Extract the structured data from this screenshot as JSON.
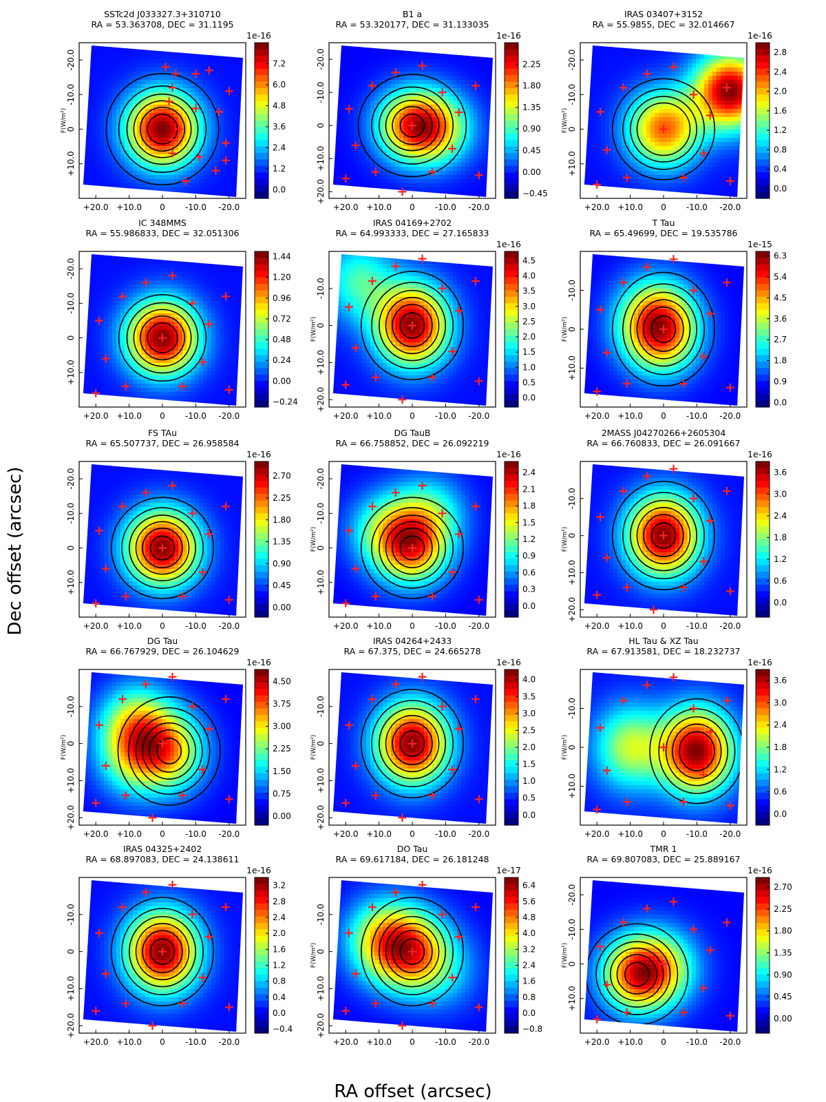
{
  "figure": {
    "xlabel": "RA offset (arcsec)",
    "ylabel": "Dec offset (arcsec)"
  },
  "chart_data": [
    {
      "type": "heatmap",
      "name": "SSTc2d J033327.3+310710",
      "title_line1": "SSTc2d J033327.3+310710",
      "title_line2": "RA = 53.363708, DEC = 31.1195",
      "scale": "1e-16",
      "cb_ticks": [
        "7.2",
        "6.0",
        "4.8",
        "3.6",
        "2.4",
        "1.2",
        "0.0"
      ],
      "cb_range": [
        -0.5,
        8.4
      ],
      "cb_label": "F(W/m²)",
      "xticks": [
        "+20.0",
        "+10.0",
        "0",
        "-10.0",
        "-20.0"
      ],
      "yticks": [
        "-20.0",
        "-10.0",
        "0",
        "+10.0"
      ],
      "peaks": [
        {
          "x": 0,
          "y": 0,
          "w": 1.0
        }
      ],
      "crosses": [
        [
          -1,
          -18
        ],
        [
          -3,
          -12
        ],
        [
          -2,
          -8
        ],
        [
          -5,
          0
        ],
        [
          -3,
          7
        ],
        [
          -7,
          15
        ],
        [
          -9,
          20
        ],
        [
          -16,
          12
        ],
        [
          -19,
          4
        ],
        [
          -20,
          -11
        ],
        [
          -14,
          -17
        ],
        [
          -4,
          -16
        ],
        [
          -10,
          -16
        ],
        [
          -17,
          -5
        ],
        [
          -19,
          9
        ],
        [
          -10,
          -6
        ],
        [
          -11,
          8
        ],
        [
          -3,
          3
        ]
      ],
      "contours": [
        0.1,
        0.25,
        0.4,
        0.55,
        0.7,
        0.85
      ],
      "xlim": [
        25,
        -25
      ],
      "ylim": [
        -25,
        20
      ]
    },
    {
      "type": "heatmap",
      "name": "B1 a",
      "title_line1": "B1 a",
      "title_line2": "RA = 53.320177, DEC = 31.133035",
      "scale": "1e-16",
      "cb_ticks": [
        "2.25",
        "1.80",
        "1.35",
        "0.90",
        "0.45",
        "0.00",
        "−0.45"
      ],
      "cb_range": [
        -0.55,
        2.7
      ],
      "cb_label": "",
      "xticks": [
        "+20.0",
        "+10.0",
        "0",
        "-10.0",
        "-20.0"
      ],
      "yticks": [
        "-20.0",
        "-10.0",
        "0",
        "+10.0",
        "+20.0"
      ],
      "peaks": [
        {
          "x": 0,
          "y": 0,
          "w": 1.0
        },
        {
          "x": -8,
          "y": 1,
          "w": 0.6
        }
      ],
      "crosses": [],
      "contours": [
        0.12,
        0.3,
        0.45,
        0.6,
        0.75,
        0.9
      ],
      "xlim": [
        25,
        -25
      ],
      "ylim": [
        -25,
        22
      ]
    },
    {
      "type": "heatmap",
      "name": "IRAS 03407+3152",
      "title_line1": "IRAS 03407+3152",
      "title_line2": "RA = 55.9855, DEC = 32.014667",
      "scale": "1e-16",
      "cb_ticks": [
        "2.8",
        "2.4",
        "2.0",
        "1.6",
        "1.2",
        "0.8",
        "0.4",
        "0.0"
      ],
      "cb_range": [
        -0.2,
        3.0
      ],
      "cb_label": "F(W/m²)",
      "xticks": [
        "+20.0",
        "+10.0",
        "0",
        "-10.0",
        "-20.0"
      ],
      "yticks": [
        "-20.0",
        "-10.0",
        "0",
        "+10.0"
      ],
      "peaks": [
        {
          "x": 0,
          "y": 0,
          "w": 0.75
        },
        {
          "x": -20,
          "y": -11,
          "w": 1.0
        }
      ],
      "crosses": [],
      "contours": [
        0.15,
        0.3,
        0.45,
        0.6
      ],
      "xlim": [
        25,
        -25
      ],
      "ylim": [
        -25,
        20
      ]
    },
    {
      "type": "heatmap",
      "name": "IC 348MMS",
      "title_line1": "IC 348MMS",
      "title_line2": "RA = 55.986833, DEC = 32.051306",
      "scale": "",
      "cb_ticks": [
        "1.44",
        "1.20",
        "0.96",
        "0.72",
        "0.48",
        "0.24",
        "0.00",
        "−0.24"
      ],
      "cb_range": [
        -0.3,
        1.5
      ],
      "cb_label": "",
      "xticks": [
        "+20.0",
        "+10.0",
        "0",
        "-10.0",
        "-20.0"
      ],
      "yticks": [
        "-20.0",
        "-10.0",
        "0",
        "+10.0"
      ],
      "peaks": [
        {
          "x": 0,
          "y": 0,
          "w": 1.0
        }
      ],
      "crosses": [],
      "contours": [
        0.25,
        0.4,
        0.55,
        0.7,
        0.85
      ],
      "xlim": [
        25,
        -25
      ],
      "ylim": [
        -25,
        20
      ]
    },
    {
      "type": "heatmap",
      "name": "IRAS 04169+2702",
      "title_line1": "IRAS 04169+2702",
      "title_line2": "RA = 64.993333, DEC = 27.165833",
      "scale": "1e-16",
      "cb_ticks": [
        "4.5",
        "4.0",
        "3.5",
        "3.0",
        "2.5",
        "2.0",
        "1.5",
        "1.0",
        "0.5",
        "0.0"
      ],
      "cb_range": [
        -0.3,
        4.8
      ],
      "cb_label": "F(W/m²)",
      "xticks": [
        "+20.0",
        "+10.0",
        "0",
        "-10.0",
        "-20.0"
      ],
      "yticks": [
        "-10.0",
        "0",
        "+10.0",
        "+20.0"
      ],
      "peaks": [
        {
          "x": 0,
          "y": 0,
          "w": 1.0
        },
        {
          "x": 16,
          "y": -12,
          "w": 0.35
        }
      ],
      "crosses": [],
      "contours": [
        0.15,
        0.3,
        0.45,
        0.6,
        0.75,
        0.9
      ],
      "xlim": [
        25,
        -25
      ],
      "ylim": [
        -20,
        22
      ]
    },
    {
      "type": "heatmap",
      "name": "T Tau",
      "title_line1": "T Tau",
      "title_line2": "RA = 65.49699, DEC = 19.535786",
      "scale": "1e-15",
      "cb_ticks": [
        "6.3",
        "5.4",
        "4.5",
        "3.6",
        "2.7",
        "1.8",
        "0.9",
        "0.0"
      ],
      "cb_range": [
        -0.2,
        6.5
      ],
      "cb_label": "F(W/m²)",
      "xticks": [
        "+20.0",
        "+10.0",
        "0",
        "-10.0",
        "-20.0"
      ],
      "yticks": [
        "-10.0",
        "0",
        "+10.0"
      ],
      "peaks": [
        {
          "x": 0,
          "y": 0,
          "w": 1.0
        },
        {
          "x": 5,
          "y": -2,
          "w": 0.5
        }
      ],
      "crosses": [],
      "contours": [
        0.15,
        0.3,
        0.45,
        0.6,
        0.75,
        0.9
      ],
      "xlim": [
        25,
        -25
      ],
      "ylim": [
        -20,
        20
      ]
    },
    {
      "type": "heatmap",
      "name": "FS TAu",
      "title_line1": "FS TAu",
      "title_line2": "RA = 65.507737, DEC = 26.958584",
      "scale": "1e-16",
      "cb_ticks": [
        "2.70",
        "2.25",
        "1.80",
        "1.35",
        "0.90",
        "0.45",
        "0.00"
      ],
      "cb_range": [
        -0.2,
        3.0
      ],
      "cb_label": "",
      "xticks": [
        "+20.0",
        "+10.0",
        "0",
        "-10.0",
        "-20.0"
      ],
      "yticks": [
        "-20.0",
        "-10.0",
        "0",
        "+10.0"
      ],
      "peaks": [
        {
          "x": 0,
          "y": 0,
          "w": 1.0
        }
      ],
      "crosses": [],
      "contours": [
        0.15,
        0.3,
        0.45,
        0.6,
        0.75,
        0.9
      ],
      "xlim": [
        25,
        -25
      ],
      "ylim": [
        -25,
        20
      ]
    },
    {
      "type": "heatmap",
      "name": "DG TauB",
      "title_line1": "DG TauB",
      "title_line2": "RA = 66.758852, DEC = 26.092219",
      "scale": "1e-16",
      "cb_ticks": [
        "2.4",
        "2.1",
        "1.8",
        "1.5",
        "1.2",
        "0.9",
        "0.6",
        "0.3",
        "0.0"
      ],
      "cb_range": [
        -0.2,
        2.6
      ],
      "cb_label": "F(W/m²)",
      "xticks": [
        "+20.0",
        "+10.0",
        "0",
        "-10.0",
        "-20.0"
      ],
      "yticks": [
        "-20.0",
        "-10.0",
        "0",
        "+10.0"
      ],
      "peaks": [
        {
          "x": 0,
          "y": 0,
          "w": 1.0
        },
        {
          "x": -5,
          "y": -10,
          "w": 0.5
        },
        {
          "x": 8,
          "y": -5,
          "w": 0.55
        }
      ],
      "crosses": [],
      "contours": [
        0.15,
        0.3,
        0.45,
        0.6,
        0.75,
        0.9
      ],
      "xlim": [
        25,
        -25
      ],
      "ylim": [
        -25,
        20
      ]
    },
    {
      "type": "heatmap",
      "name": "2MASS J04270266+2605304",
      "title_line1": "2MASS J04270266+2605304",
      "title_line2": "RA = 66.760833, DEC = 26.091667",
      "scale": "1e-16",
      "cb_ticks": [
        "3.6",
        "3.0",
        "2.4",
        "1.8",
        "1.2",
        "0.6",
        "0.0"
      ],
      "cb_range": [
        -0.4,
        3.9
      ],
      "cb_label": "F(W/m²)",
      "xticks": [
        "+20.0",
        "+10.0",
        "0",
        "-10.0",
        "-20.0"
      ],
      "yticks": [
        "-10.0",
        "0",
        "+10.0",
        "+20.0"
      ],
      "peaks": [
        {
          "x": 0,
          "y": 0,
          "w": 1.0
        }
      ],
      "crosses": [],
      "contours": [
        0.15,
        0.3,
        0.45,
        0.6,
        0.75,
        0.9
      ],
      "xlim": [
        25,
        -25
      ],
      "ylim": [
        -20,
        22
      ]
    },
    {
      "type": "heatmap",
      "name": "DG Tau",
      "title_line1": "DG Tau",
      "title_line2": "RA = 66.767929, DEC = 26.104629",
      "scale": "1e-16",
      "cb_ticks": [
        "4.50",
        "3.75",
        "3.00",
        "2.25",
        "1.50",
        "0.75",
        "0.00"
      ],
      "cb_range": [
        -0.3,
        4.9
      ],
      "cb_label": "F(W/m²)",
      "xticks": [
        "+20.0",
        "+10.0",
        "0",
        "-10.0",
        "-20.0"
      ],
      "yticks": [
        "-10.0",
        "0",
        "+10.0",
        "+20.0"
      ],
      "peaks": [
        {
          "x": -2,
          "y": 2,
          "w": 1.0
        },
        {
          "x": 8,
          "y": -5,
          "w": 0.85
        },
        {
          "x": 9,
          "y": 4,
          "w": 0.6
        }
      ],
      "crosses": [],
      "contours": [
        0.15,
        0.3,
        0.45,
        0.6,
        0.75,
        0.9
      ],
      "xlim": [
        25,
        -25
      ],
      "ylim": [
        -20,
        22
      ]
    },
    {
      "type": "heatmap",
      "name": "IRAS 04264+2433",
      "title_line1": "IRAS 04264+2433",
      "title_line2": "RA = 67.375, DEC = 24.665278",
      "scale": "1e-16",
      "cb_ticks": [
        "4.0",
        "3.5",
        "3.0",
        "2.5",
        "2.0",
        "1.5",
        "1.0",
        "0.5",
        "0.0"
      ],
      "cb_range": [
        -0.3,
        4.3
      ],
      "cb_label": "F(W/m²)",
      "xticks": [
        "+20.0",
        "+10.0",
        "0",
        "-10.0",
        "-20.0"
      ],
      "yticks": [
        "-10.0",
        "0",
        "+10.0",
        "+20.0"
      ],
      "peaks": [
        {
          "x": 0,
          "y": 0,
          "w": 1.0
        }
      ],
      "crosses": [],
      "contours": [
        0.15,
        0.3,
        0.45,
        0.6,
        0.75,
        0.9
      ],
      "xlim": [
        25,
        -25
      ],
      "ylim": [
        -20,
        22
      ]
    },
    {
      "type": "heatmap",
      "name": "HL Tau & XZ Tau",
      "title_line1": "HL Tau & XZ Tau",
      "title_line2": "RA = 67.913581, DEC = 18.232737",
      "scale": "1e-16",
      "cb_ticks": [
        "3.6",
        "3.0",
        "2.4",
        "1.8",
        "1.2",
        "0.6",
        "0.0"
      ],
      "cb_range": [
        -0.3,
        3.9
      ],
      "cb_label": "F(W/m²)",
      "xticks": [
        "+20.0",
        "+10.0",
        "0",
        "-10.0",
        "-20.0"
      ],
      "yticks": [
        "-10.0",
        "0",
        "+10.0"
      ],
      "peaks": [
        {
          "x": -10,
          "y": 1,
          "w": 1.0
        },
        {
          "x": 10,
          "y": 0,
          "w": 0.5
        }
      ],
      "crosses": [],
      "contours": [
        0.2,
        0.35,
        0.5,
        0.65,
        0.8
      ],
      "xlim": [
        25,
        -25
      ],
      "ylim": [
        -20,
        20
      ]
    },
    {
      "type": "heatmap",
      "name": "IRAS 04325+2402",
      "title_line1": "IRAS 04325+2402",
      "title_line2": "RA = 68.897083, DEC = 24.138611",
      "scale": "1e-16",
      "cb_ticks": [
        "3.2",
        "2.8",
        "2.4",
        "2.0",
        "1.6",
        "1.2",
        "0.8",
        "0.4",
        "0.0",
        "−0.4"
      ],
      "cb_range": [
        -0.5,
        3.4
      ],
      "cb_label": "",
      "xticks": [
        "+20.0",
        "+10.0",
        "0",
        "-10.0",
        "-20.0"
      ],
      "yticks": [
        "-10.0",
        "0",
        "+10.0",
        "+20.0"
      ],
      "peaks": [
        {
          "x": 0,
          "y": 0,
          "w": 1.0
        }
      ],
      "crosses": [],
      "contours": [
        0.15,
        0.3,
        0.45,
        0.6,
        0.75,
        0.9
      ],
      "xlim": [
        25,
        -25
      ],
      "ylim": [
        -20,
        22
      ]
    },
    {
      "type": "heatmap",
      "name": "DO Tau",
      "title_line1": "DO Tau",
      "title_line2": "RA = 69.617184, DEC = 26.181248",
      "scale": "1e-17",
      "cb_ticks": [
        "6.4",
        "5.6",
        "4.8",
        "4.0",
        "3.2",
        "2.4",
        "1.6",
        "0.8",
        "0.0",
        "−0.8"
      ],
      "cb_range": [
        -1.0,
        6.8
      ],
      "cb_label": "F(W/m²)",
      "xticks": [
        "+20.0",
        "+10.0",
        "0",
        "-10.0",
        "-20.0"
      ],
      "yticks": [
        "-10.0",
        "0",
        "+10.0",
        "+20.0"
      ],
      "peaks": [
        {
          "x": 0,
          "y": 0,
          "w": 1.0
        },
        {
          "x": 9,
          "y": -3,
          "w": 0.85
        },
        {
          "x": -10,
          "y": 5,
          "w": 0.3
        }
      ],
      "crosses": [],
      "contours": [
        0.15,
        0.3,
        0.45,
        0.6,
        0.75,
        0.9
      ],
      "xlim": [
        25,
        -25
      ],
      "ylim": [
        -20,
        22
      ]
    },
    {
      "type": "heatmap",
      "name": "TMR 1",
      "title_line1": "TMR 1",
      "title_line2": "RA = 69.807083, DEC = 25.889167",
      "scale": "1e-16",
      "cb_ticks": [
        "2.70",
        "2.25",
        "1.80",
        "1.35",
        "0.90",
        "0.45",
        "0.00"
      ],
      "cb_range": [
        -0.3,
        2.9
      ],
      "cb_label": "F(W/m²)",
      "xticks": [
        "+20.0",
        "+10.0",
        "0",
        "-10.0",
        "-20.0"
      ],
      "yticks": [
        "-20.0",
        "-10.0",
        "0",
        "+10.0"
      ],
      "peaks": [
        {
          "x": 8,
          "y": 3,
          "w": 1.0
        },
        {
          "x": 0,
          "y": 1,
          "w": 0.55
        }
      ],
      "crosses": [],
      "contours": [
        0.15,
        0.3,
        0.45,
        0.6,
        0.75,
        0.9
      ],
      "xlim": [
        25,
        -25
      ],
      "ylim": [
        -25,
        20
      ]
    }
  ]
}
